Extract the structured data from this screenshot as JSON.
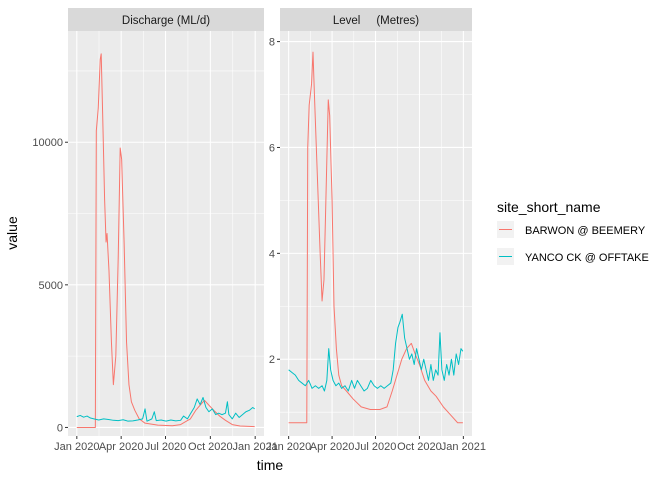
{
  "chart_data": {
    "type": "line",
    "xlabel": "time",
    "ylabel": "value",
    "x_ticks": [
      "Jan 2020",
      "Apr 2020",
      "Jul 2020",
      "Oct 2020",
      "Jan 2021"
    ],
    "x_range": [
      "2020-01-01",
      "2021-01-01"
    ],
    "grid": true,
    "legend": {
      "title": "site_short_name",
      "placement": "right",
      "entries": [
        {
          "name": "BARWON @ BEEMERY",
          "color": "#F8766D"
        },
        {
          "name": "YANCO CK @ OFFTAKE",
          "color": "#00BFC4"
        }
      ]
    },
    "panels": [
      {
        "title": "Discharge (ML/d)",
        "ylim": [
          -300,
          13900
        ],
        "y_ticks": [
          "0",
          "5000",
          "10000"
        ],
        "series": [
          {
            "name": "BARWON @ BEEMERY",
            "color": "#F8766D",
            "points": [
              [
                "2020-01-01",
                0
              ],
              [
                "2020-02-08",
                0
              ],
              [
                "2020-02-10",
                10400
              ],
              [
                "2020-02-14",
                11200
              ],
              [
                "2020-02-18",
                12900
              ],
              [
                "2020-02-20",
                13100
              ],
              [
                "2020-02-23",
                11000
              ],
              [
                "2020-02-27",
                8000
              ],
              [
                "2020-03-01",
                6500
              ],
              [
                "2020-03-03",
                6800
              ],
              [
                "2020-03-07",
                5500
              ],
              [
                "2020-03-12",
                3000
              ],
              [
                "2020-03-16",
                1500
              ],
              [
                "2020-03-21",
                2500
              ],
              [
                "2020-03-26",
                6000
              ],
              [
                "2020-03-30",
                9800
              ],
              [
                "2020-04-02",
                9400
              ],
              [
                "2020-04-07",
                6500
              ],
              [
                "2020-04-12",
                3000
              ],
              [
                "2020-04-17",
                1500
              ],
              [
                "2020-04-22",
                900
              ],
              [
                "2020-04-29",
                600
              ],
              [
                "2020-05-08",
                300
              ],
              [
                "2020-05-20",
                150
              ],
              [
                "2020-06-15",
                80
              ],
              [
                "2020-07-15",
                60
              ],
              [
                "2020-08-01",
                100
              ],
              [
                "2020-08-11",
                200
              ],
              [
                "2020-08-21",
                300
              ],
              [
                "2020-09-01",
                600
              ],
              [
                "2020-09-11",
                800
              ],
              [
                "2020-09-19",
                950
              ],
              [
                "2020-09-27",
                800
              ],
              [
                "2020-10-08",
                600
              ],
              [
                "2020-10-20",
                400
              ],
              [
                "2020-11-01",
                250
              ],
              [
                "2020-11-15",
                100
              ],
              [
                "2020-12-01",
                50
              ],
              [
                "2020-12-31",
                30
              ]
            ]
          },
          {
            "name": "YANCO CK @ OFFTAKE",
            "color": "#00BFC4",
            "points": [
              [
                "2020-01-01",
                380
              ],
              [
                "2020-01-08",
                420
              ],
              [
                "2020-01-15",
                360
              ],
              [
                "2020-01-22",
                400
              ],
              [
                "2020-01-29",
                330
              ],
              [
                "2020-02-05",
                300
              ],
              [
                "2020-02-15",
                260
              ],
              [
                "2020-02-25",
                300
              ],
              [
                "2020-03-06",
                280
              ],
              [
                "2020-03-16",
                250
              ],
              [
                "2020-03-26",
                240
              ],
              [
                "2020-04-05",
                270
              ],
              [
                "2020-04-15",
                220
              ],
              [
                "2020-04-25",
                230
              ],
              [
                "2020-05-05",
                260
              ],
              [
                "2020-05-15",
                300
              ],
              [
                "2020-05-20",
                650
              ],
              [
                "2020-05-24",
                220
              ],
              [
                "2020-06-03",
                300
              ],
              [
                "2020-06-08",
                550
              ],
              [
                "2020-06-12",
                240
              ],
              [
                "2020-06-22",
                260
              ],
              [
                "2020-07-02",
                220
              ],
              [
                "2020-07-12",
                260
              ],
              [
                "2020-07-22",
                230
              ],
              [
                "2020-08-01",
                250
              ],
              [
                "2020-08-07",
                400
              ],
              [
                "2020-08-15",
                300
              ],
              [
                "2020-08-22",
                500
              ],
              [
                "2020-08-29",
                700
              ],
              [
                "2020-09-04",
                1000
              ],
              [
                "2020-09-10",
                800
              ],
              [
                "2020-09-16",
                1050
              ],
              [
                "2020-09-22",
                700
              ],
              [
                "2020-09-28",
                550
              ],
              [
                "2020-10-05",
                650
              ],
              [
                "2020-10-12",
                450
              ],
              [
                "2020-10-18",
                500
              ],
              [
                "2020-10-25",
                450
              ],
              [
                "2020-11-01",
                500
              ],
              [
                "2020-11-05",
                900
              ],
              [
                "2020-11-08",
                450
              ],
              [
                "2020-11-15",
                300
              ],
              [
                "2020-11-22",
                500
              ],
              [
                "2020-11-29",
                350
              ],
              [
                "2020-12-06",
                450
              ],
              [
                "2020-12-13",
                550
              ],
              [
                "2020-12-20",
                600
              ],
              [
                "2020-12-27",
                700
              ],
              [
                "2020-12-31",
                650
              ]
            ]
          }
        ]
      },
      {
        "title": "Level     (Metres)",
        "ylim": [
          0.55,
          8.2
        ],
        "y_ticks": [
          "2",
          "4",
          "6",
          "8"
        ],
        "series": [
          {
            "name": "BARWON @ BEEMERY",
            "color": "#F8766D",
            "points": [
              [
                "2020-01-01",
                0.8
              ],
              [
                "2020-02-08",
                0.8
              ],
              [
                "2020-02-10",
                6.0
              ],
              [
                "2020-02-13",
                6.8
              ],
              [
                "2020-02-18",
                7.2
              ],
              [
                "2020-02-21",
                7.8
              ],
              [
                "2020-02-24",
                7.0
              ],
              [
                "2020-02-28",
                6.0
              ],
              [
                "2020-03-03",
                5.0
              ],
              [
                "2020-03-07",
                4.0
              ],
              [
                "2020-03-11",
                3.1
              ],
              [
                "2020-03-15",
                3.5
              ],
              [
                "2020-03-19",
                5.0
              ],
              [
                "2020-03-24",
                6.9
              ],
              [
                "2020-03-27",
                6.6
              ],
              [
                "2020-04-01",
                5.0
              ],
              [
                "2020-04-05",
                3.0
              ],
              [
                "2020-04-10",
                2.2
              ],
              [
                "2020-04-15",
                1.7
              ],
              [
                "2020-04-21",
                1.5
              ],
              [
                "2020-05-01",
                1.4
              ],
              [
                "2020-05-15",
                1.25
              ],
              [
                "2020-06-01",
                1.1
              ],
              [
                "2020-06-20",
                1.05
              ],
              [
                "2020-07-10",
                1.05
              ],
              [
                "2020-07-25",
                1.1
              ],
              [
                "2020-08-05",
                1.4
              ],
              [
                "2020-08-15",
                1.7
              ],
              [
                "2020-08-25",
                2.0
              ],
              [
                "2020-09-04",
                2.2
              ],
              [
                "2020-09-14",
                2.3
              ],
              [
                "2020-09-22",
                2.1
              ],
              [
                "2020-10-01",
                1.9
              ],
              [
                "2020-10-12",
                1.6
              ],
              [
                "2020-10-25",
                1.4
              ],
              [
                "2020-11-05",
                1.3
              ],
              [
                "2020-11-20",
                1.1
              ],
              [
                "2020-12-05",
                0.95
              ],
              [
                "2020-12-20",
                0.8
              ],
              [
                "2020-12-31",
                0.8
              ]
            ]
          },
          {
            "name": "YANCO CK @ OFFTAKE",
            "color": "#00BFC4",
            "points": [
              [
                "2020-01-01",
                1.8
              ],
              [
                "2020-01-08",
                1.75
              ],
              [
                "2020-01-15",
                1.7
              ],
              [
                "2020-01-22",
                1.6
              ],
              [
                "2020-01-29",
                1.55
              ],
              [
                "2020-02-05",
                1.5
              ],
              [
                "2020-02-12",
                1.6
              ],
              [
                "2020-02-19",
                1.45
              ],
              [
                "2020-02-26",
                1.5
              ],
              [
                "2020-03-04",
                1.45
              ],
              [
                "2020-03-11",
                1.5
              ],
              [
                "2020-03-16",
                1.4
              ],
              [
                "2020-03-21",
                1.6
              ],
              [
                "2020-03-25",
                2.2
              ],
              [
                "2020-03-29",
                1.8
              ],
              [
                "2020-04-03",
                1.6
              ],
              [
                "2020-04-09",
                1.5
              ],
              [
                "2020-04-15",
                1.55
              ],
              [
                "2020-04-21",
                1.45
              ],
              [
                "2020-04-28",
                1.5
              ],
              [
                "2020-05-05",
                1.4
              ],
              [
                "2020-05-12",
                1.6
              ],
              [
                "2020-05-18",
                1.45
              ],
              [
                "2020-05-24",
                1.6
              ],
              [
                "2020-05-31",
                1.5
              ],
              [
                "2020-06-07",
                1.4
              ],
              [
                "2020-06-14",
                1.45
              ],
              [
                "2020-06-21",
                1.6
              ],
              [
                "2020-06-28",
                1.5
              ],
              [
                "2020-07-05",
                1.45
              ],
              [
                "2020-07-12",
                1.5
              ],
              [
                "2020-07-19",
                1.45
              ],
              [
                "2020-07-26",
                1.5
              ],
              [
                "2020-08-02",
                1.55
              ],
              [
                "2020-08-07",
                1.8
              ],
              [
                "2020-08-12",
                2.3
              ],
              [
                "2020-08-17",
                2.6
              ],
              [
                "2020-08-21",
                2.7
              ],
              [
                "2020-08-26",
                2.85
              ],
              [
                "2020-08-31",
                2.4
              ],
              [
                "2020-09-05",
                2.2
              ],
              [
                "2020-09-10",
                2.0
              ],
              [
                "2020-09-15",
                2.1
              ],
              [
                "2020-09-20",
                1.9
              ],
              [
                "2020-09-25",
                2.2
              ],
              [
                "2020-09-30",
                2.0
              ],
              [
                "2020-10-05",
                1.8
              ],
              [
                "2020-10-10",
                2.0
              ],
              [
                "2020-10-15",
                1.8
              ],
              [
                "2020-10-20",
                1.6
              ],
              [
                "2020-10-25",
                1.9
              ],
              [
                "2020-10-30",
                1.6
              ],
              [
                "2020-11-04",
                1.8
              ],
              [
                "2020-11-09",
                1.7
              ],
              [
                "2020-11-13",
                2.5
              ],
              [
                "2020-11-17",
                1.8
              ],
              [
                "2020-11-22",
                1.6
              ],
              [
                "2020-11-27",
                1.9
              ],
              [
                "2020-12-02",
                1.7
              ],
              [
                "2020-12-07",
                2.0
              ],
              [
                "2020-12-12",
                1.7
              ],
              [
                "2020-12-17",
                2.1
              ],
              [
                "2020-12-22",
                1.9
              ],
              [
                "2020-12-27",
                2.2
              ],
              [
                "2020-12-31",
                2.15
              ]
            ]
          }
        ]
      }
    ]
  }
}
